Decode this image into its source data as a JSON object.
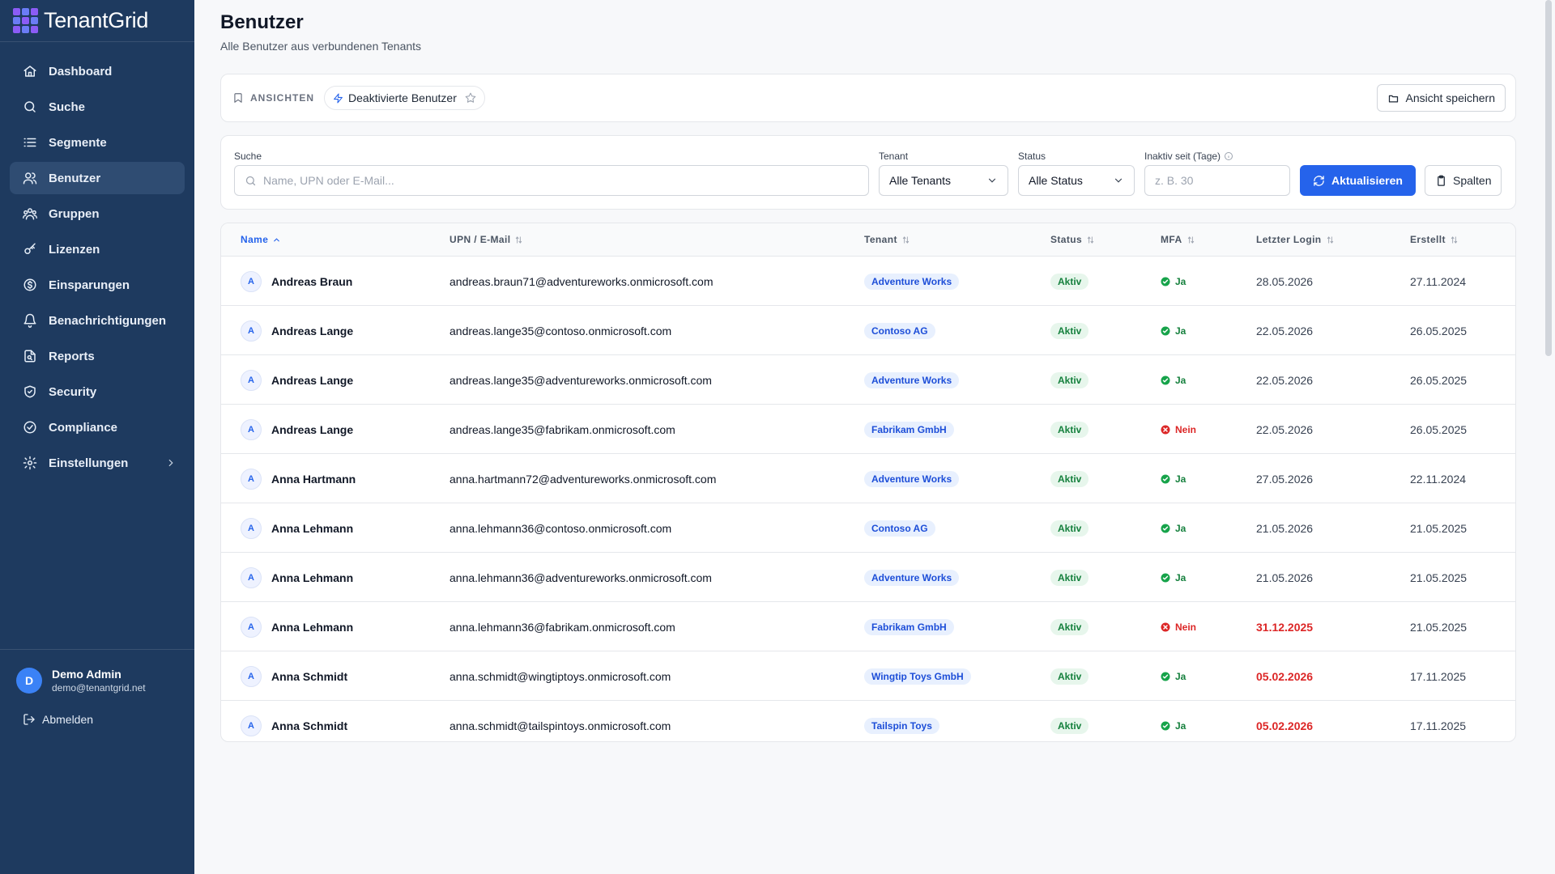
{
  "app": {
    "name": "TenantGrid"
  },
  "sidebar": {
    "items": [
      {
        "label": "Dashboard",
        "icon": "home-icon"
      },
      {
        "label": "Suche",
        "icon": "search-icon"
      },
      {
        "label": "Segmente",
        "icon": "list-icon"
      },
      {
        "label": "Benutzer",
        "icon": "users-icon",
        "active": true
      },
      {
        "label": "Gruppen",
        "icon": "group-icon"
      },
      {
        "label": "Lizenzen",
        "icon": "key-icon"
      },
      {
        "label": "Einsparungen",
        "icon": "dollar-icon"
      },
      {
        "label": "Benachrichtigungen",
        "icon": "bell-icon"
      },
      {
        "label": "Reports",
        "icon": "report-icon"
      },
      {
        "label": "Security",
        "icon": "shield-icon"
      },
      {
        "label": "Compliance",
        "icon": "check-circle-icon"
      },
      {
        "label": "Einstellungen",
        "icon": "gear-icon"
      }
    ],
    "user": {
      "initial": "D",
      "name": "Demo Admin",
      "email": "demo@tenantgrid.net"
    },
    "logout_label": "Abmelden"
  },
  "page": {
    "title": "Benutzer",
    "subtitle": "Alle Benutzer aus verbundenen Tenants"
  },
  "views": {
    "label": "ANSICHTEN",
    "chip": "Deaktivierte Benutzer",
    "save_label": "Ansicht speichern"
  },
  "filters": {
    "search_label": "Suche",
    "search_placeholder": "Name, UPN oder E-Mail...",
    "tenant_label": "Tenant",
    "tenant_value": "Alle Tenants",
    "status_label": "Status",
    "status_value": "Alle Status",
    "inactive_label": "Inaktiv seit (Tage)",
    "inactive_placeholder": "z. B. 30",
    "refresh_label": "Aktualisieren",
    "columns_label": "Spalten"
  },
  "table": {
    "headers": {
      "name": "Name",
      "upn": "UPN / E-Mail",
      "tenant": "Tenant",
      "status": "Status",
      "mfa": "MFA",
      "last_login": "Letzter Login",
      "created": "Erstellt"
    },
    "rows": [
      {
        "initial": "A",
        "name": "Andreas Braun",
        "upn": "andreas.braun71@adventureworks.onmicrosoft.com",
        "tenant": "Adventure Works",
        "status": "Aktiv",
        "mfa": "Ja",
        "mfa_ok": true,
        "last_login": "28.05.2026",
        "login_warn": false,
        "created": "27.11.2024"
      },
      {
        "initial": "A",
        "name": "Andreas Lange",
        "upn": "andreas.lange35@contoso.onmicrosoft.com",
        "tenant": "Contoso AG",
        "status": "Aktiv",
        "mfa": "Ja",
        "mfa_ok": true,
        "last_login": "22.05.2026",
        "login_warn": false,
        "created": "26.05.2025"
      },
      {
        "initial": "A",
        "name": "Andreas Lange",
        "upn": "andreas.lange35@adventureworks.onmicrosoft.com",
        "tenant": "Adventure Works",
        "status": "Aktiv",
        "mfa": "Ja",
        "mfa_ok": true,
        "last_login": "22.05.2026",
        "login_warn": false,
        "created": "26.05.2025"
      },
      {
        "initial": "A",
        "name": "Andreas Lange",
        "upn": "andreas.lange35@fabrikam.onmicrosoft.com",
        "tenant": "Fabrikam GmbH",
        "status": "Aktiv",
        "mfa": "Nein",
        "mfa_ok": false,
        "last_login": "22.05.2026",
        "login_warn": false,
        "created": "26.05.2025"
      },
      {
        "initial": "A",
        "name": "Anna Hartmann",
        "upn": "anna.hartmann72@adventureworks.onmicrosoft.com",
        "tenant": "Adventure Works",
        "status": "Aktiv",
        "mfa": "Ja",
        "mfa_ok": true,
        "last_login": "27.05.2026",
        "login_warn": false,
        "created": "22.11.2024"
      },
      {
        "initial": "A",
        "name": "Anna Lehmann",
        "upn": "anna.lehmann36@contoso.onmicrosoft.com",
        "tenant": "Contoso AG",
        "status": "Aktiv",
        "mfa": "Ja",
        "mfa_ok": true,
        "last_login": "21.05.2026",
        "login_warn": false,
        "created": "21.05.2025"
      },
      {
        "initial": "A",
        "name": "Anna Lehmann",
        "upn": "anna.lehmann36@adventureworks.onmicrosoft.com",
        "tenant": "Adventure Works",
        "status": "Aktiv",
        "mfa": "Ja",
        "mfa_ok": true,
        "last_login": "21.05.2026",
        "login_warn": false,
        "created": "21.05.2025"
      },
      {
        "initial": "A",
        "name": "Anna Lehmann",
        "upn": "anna.lehmann36@fabrikam.onmicrosoft.com",
        "tenant": "Fabrikam GmbH",
        "status": "Aktiv",
        "mfa": "Nein",
        "mfa_ok": false,
        "last_login": "31.12.2025",
        "login_warn": true,
        "created": "21.05.2025"
      },
      {
        "initial": "A",
        "name": "Anna Schmidt",
        "upn": "anna.schmidt@wingtiptoys.onmicrosoft.com",
        "tenant": "Wingtip Toys GmbH",
        "status": "Aktiv",
        "mfa": "Ja",
        "mfa_ok": true,
        "last_login": "05.02.2026",
        "login_warn": true,
        "created": "17.11.2025"
      },
      {
        "initial": "A",
        "name": "Anna Schmidt",
        "upn": "anna.schmidt@tailspintoys.onmicrosoft.com",
        "tenant": "Tailspin Toys",
        "status": "Aktiv",
        "mfa": "Ja",
        "mfa_ok": true,
        "last_login": "05.02.2026",
        "login_warn": true,
        "created": "17.11.2025"
      }
    ]
  },
  "colors": {
    "sidebar_bg": "#1e3a5f",
    "primary": "#2563eb",
    "success": "#15803d",
    "danger": "#dc2626"
  }
}
